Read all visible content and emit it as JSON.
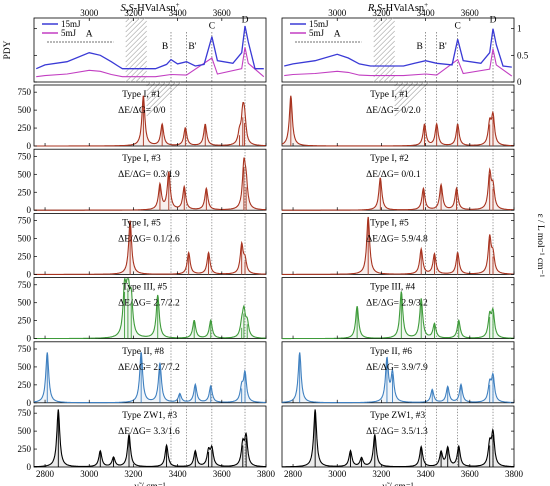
{
  "chart_data": {
    "type": "line",
    "xlim": [
      2750,
      3800
    ],
    "x_ticks": [
      2800,
      3000,
      3200,
      3400,
      3600,
      3800
    ],
    "x_label": "ν̃ / cm⁻¹",
    "top_panel": {
      "ylabel": "PDY",
      "yticks": [
        "0",
        "0.5",
        "1"
      ],
      "legend": [
        {
          "name": "15mJ",
          "color": "#3a3ad6"
        },
        {
          "name": "5mJ",
          "color": "#c23ec2"
        }
      ],
      "band_labels": [
        "A",
        "B",
        "B'",
        "C",
        "D"
      ]
    },
    "ir_ylabel": "ε / L mol⁻¹ cm⁻¹",
    "ir_yticks": [
      "0",
      "250",
      "500",
      "750"
    ],
    "columns": [
      {
        "title_prefix": "S,S",
        "title_suffix": "-HValAsn",
        "title_sup": "+",
        "band_positions": [
          3000,
          3370,
          3440,
          3555,
          3705
        ],
        "pdy_15mJ": [
          [
            2760,
            0.25
          ],
          [
            2800,
            0.32
          ],
          [
            2900,
            0.38
          ],
          [
            3000,
            0.55
          ],
          [
            3050,
            0.5
          ],
          [
            3100,
            0.38
          ],
          [
            3130,
            0.3
          ],
          [
            3150,
            0.25
          ],
          [
            3300,
            0.25
          ],
          [
            3350,
            0.33
          ],
          [
            3370,
            0.42
          ],
          [
            3400,
            0.34
          ],
          [
            3440,
            0.38
          ],
          [
            3480,
            0.3
          ],
          [
            3520,
            0.33
          ],
          [
            3555,
            0.85
          ],
          [
            3580,
            0.4
          ],
          [
            3650,
            0.35
          ],
          [
            3690,
            0.55
          ],
          [
            3705,
            1.05
          ],
          [
            3720,
            0.75
          ],
          [
            3750,
            0.25
          ],
          [
            3790,
            0.25
          ]
        ],
        "pdy_5mJ": [
          [
            2760,
            0.1
          ],
          [
            2800,
            0.12
          ],
          [
            2900,
            0.15
          ],
          [
            3000,
            0.22
          ],
          [
            3050,
            0.2
          ],
          [
            3100,
            0.14
          ],
          [
            3150,
            0.1
          ],
          [
            3300,
            0.1
          ],
          [
            3370,
            0.14
          ],
          [
            3440,
            0.13
          ],
          [
            3555,
            0.45
          ],
          [
            3580,
            0.15
          ],
          [
            3690,
            0.25
          ],
          [
            3705,
            0.65
          ],
          [
            3720,
            0.35
          ],
          [
            3790,
            0.1
          ]
        ],
        "spectra": [
          {
            "type": "Type I, #1",
            "energy": "ΔE/ΔG= 0/0",
            "color": "#a8331f",
            "sticks": [
              [
                3245,
                700
              ],
              [
                3330,
                300
              ],
              [
                3435,
                250
              ],
              [
                3525,
                300
              ],
              [
                3680,
                150
              ],
              [
                3695,
                400
              ],
              [
                3703,
                320
              ]
            ]
          },
          {
            "type": "Type I, #3",
            "energy": "ΔE/ΔG= 0.3/1.9",
            "color": "#a8331f",
            "sticks": [
              [
                3320,
                350
              ],
              [
                3360,
                520
              ],
              [
                3430,
                320
              ],
              [
                3530,
                300
              ],
              [
                3700,
                600
              ],
              [
                3710,
                320
              ]
            ]
          },
          {
            "type": "Type I, #5",
            "energy": "ΔE/ΔG= 0.1/2.6",
            "color": "#a8331f",
            "sticks": [
              [
                3185,
                750
              ],
              [
                3450,
                300
              ],
              [
                3540,
                300
              ],
              [
                3690,
                400
              ],
              [
                3705,
                180
              ]
            ]
          },
          {
            "type": "Type III, #5",
            "energy": "ΔE/ΔG= 2.7/2.2",
            "color": "#3e9b3a",
            "sticks": [
              [
                3160,
                650
              ],
              [
                3175,
                700
              ],
              [
                3190,
                500
              ],
              [
                3310,
                600
              ],
              [
                3475,
                250
              ],
              [
                3550,
                250
              ],
              [
                3690,
                150
              ],
              [
                3700,
                350
              ],
              [
                3715,
                200
              ]
            ]
          },
          {
            "type": "Type II, #8",
            "energy": "ΔE/ΔG= 2.7/7.2",
            "color": "#3f80c0",
            "sticks": [
              [
                2810,
                700
              ],
              [
                3235,
                700
              ],
              [
                3320,
                550
              ],
              [
                3410,
                120
              ],
              [
                3480,
                250
              ],
              [
                3550,
                230
              ],
              [
                3690,
                200
              ],
              [
                3705,
                400
              ]
            ]
          },
          {
            "type": "Type ZW1, #3",
            "energy": "ΔE/ΔG= 3.3/1.6",
            "color": "#000000",
            "sticks": [
              [
                2860,
                800
              ],
              [
                3050,
                220
              ],
              [
                3110,
                130
              ],
              [
                3180,
                450
              ],
              [
                3350,
                300
              ],
              [
                3480,
                220
              ],
              [
                3540,
                210
              ],
              [
                3555,
                240
              ],
              [
                3695,
                300
              ],
              [
                3710,
                400
              ]
            ]
          }
        ]
      },
      {
        "title_prefix": "R,S",
        "title_suffix": "-HValAsn",
        "title_sup": "+",
        "band_positions": [
          3000,
          3400,
          3450,
          3545,
          3705
        ],
        "pdy_15mJ": [
          [
            2760,
            0.3
          ],
          [
            2800,
            0.34
          ],
          [
            2900,
            0.4
          ],
          [
            3000,
            0.52
          ],
          [
            3050,
            0.45
          ],
          [
            3100,
            0.34
          ],
          [
            3150,
            0.3
          ],
          [
            3300,
            0.3
          ],
          [
            3350,
            0.35
          ],
          [
            3400,
            0.4
          ],
          [
            3450,
            0.35
          ],
          [
            3520,
            0.32
          ],
          [
            3545,
            0.8
          ],
          [
            3570,
            0.4
          ],
          [
            3650,
            0.35
          ],
          [
            3690,
            0.55
          ],
          [
            3705,
            1.0
          ],
          [
            3720,
            0.7
          ],
          [
            3750,
            0.3
          ],
          [
            3790,
            0.28
          ]
        ],
        "pdy_5mJ": [
          [
            2760,
            0.12
          ],
          [
            2800,
            0.14
          ],
          [
            2900,
            0.16
          ],
          [
            3000,
            0.2
          ],
          [
            3050,
            0.18
          ],
          [
            3100,
            0.13
          ],
          [
            3150,
            0.12
          ],
          [
            3300,
            0.12
          ],
          [
            3400,
            0.15
          ],
          [
            3450,
            0.13
          ],
          [
            3545,
            0.42
          ],
          [
            3570,
            0.16
          ],
          [
            3690,
            0.24
          ],
          [
            3705,
            0.62
          ],
          [
            3720,
            0.32
          ],
          [
            3790,
            0.11
          ]
        ],
        "spectra": [
          {
            "type": "Type I, #1",
            "energy": "ΔE/ΔG= 0/2.0",
            "color": "#a8331f",
            "sticks": [
              [
                2790,
                700
              ],
              [
                3395,
                300
              ],
              [
                3450,
                300
              ],
              [
                3545,
                300
              ],
              [
                3690,
                300
              ],
              [
                3705,
                400
              ]
            ]
          },
          {
            "type": "Type I, #2",
            "energy": "ΔE/ΔG= 0/0.1",
            "color": "#a8331f",
            "sticks": [
              [
                3195,
                450
              ],
              [
                3390,
                300
              ],
              [
                3470,
                350
              ],
              [
                3540,
                300
              ],
              [
                3690,
                500
              ],
              [
                3705,
                300
              ]
            ]
          },
          {
            "type": "Type I, #5",
            "energy": "ΔE/ΔG= 5.9/4.8",
            "color": "#a8331f",
            "sticks": [
              [
                3140,
                800
              ],
              [
                3380,
                350
              ],
              [
                3440,
                280
              ],
              [
                3545,
                300
              ],
              [
                3690,
                500
              ],
              [
                3705,
                250
              ]
            ]
          },
          {
            "type": "Type III, #4",
            "energy": "ΔE/ΔG= 2.9/3.2",
            "color": "#3e9b3a",
            "sticks": [
              [
                3090,
                450
              ],
              [
                3290,
                650
              ],
              [
                3380,
                550
              ],
              [
                3440,
                200
              ],
              [
                3550,
                250
              ],
              [
                3690,
                300
              ],
              [
                3705,
                350
              ]
            ]
          },
          {
            "type": "Type II, #6",
            "energy": "ΔE/ΔG= 3.9/7.9",
            "color": "#3f80c0",
            "sticks": [
              [
                2830,
                700
              ],
              [
                3225,
                600
              ],
              [
                3250,
                400
              ],
              [
                3430,
                180
              ],
              [
                3500,
                220
              ],
              [
                3560,
                250
              ],
              [
                3690,
                250
              ],
              [
                3705,
                350
              ]
            ]
          },
          {
            "type": "Type ZW1, #3",
            "energy": "ΔE/ΔG= 3.5/1.3",
            "color": "#000000",
            "sticks": [
              [
                2900,
                800
              ],
              [
                3060,
                220
              ],
              [
                3110,
                120
              ],
              [
                3170,
                450
              ],
              [
                3380,
                280
              ],
              [
                3470,
                200
              ],
              [
                3500,
                260
              ],
              [
                3550,
                280
              ],
              [
                3690,
                300
              ],
              [
                3705,
                450
              ]
            ]
          }
        ]
      }
    ]
  }
}
